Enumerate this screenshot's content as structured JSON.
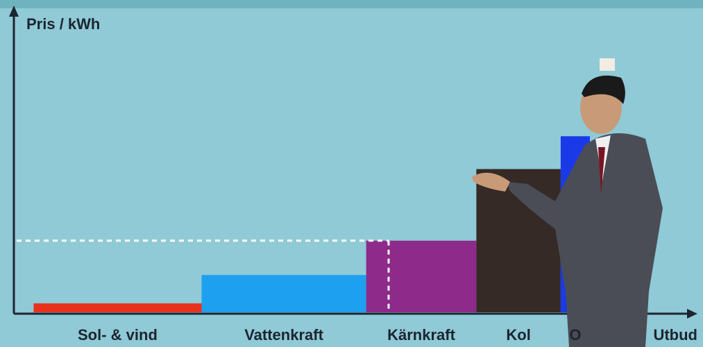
{
  "chart_data": {
    "type": "merit-order",
    "y_label": "Pris / kWh",
    "x_label": "Utbud",
    "categories": [
      "Sol- & vind",
      "Vattenkraft",
      "Kärnkraft",
      "Kol",
      "O"
    ],
    "values": [
      3,
      12.5,
      24,
      48,
      59
    ],
    "x_edges": [
      2.9,
      27.6,
      51.8,
      68.0,
      80.4,
      84.7
    ],
    "colors": [
      "#e8321e",
      "#1ea0f0",
      "#8e2a8a",
      "#352a26",
      "#1a3ae8"
    ],
    "xlim": [
      0,
      100
    ],
    "ylim": [
      0,
      100
    ],
    "clearing_price": 24,
    "clearing_quantity": 55.1
  }
}
